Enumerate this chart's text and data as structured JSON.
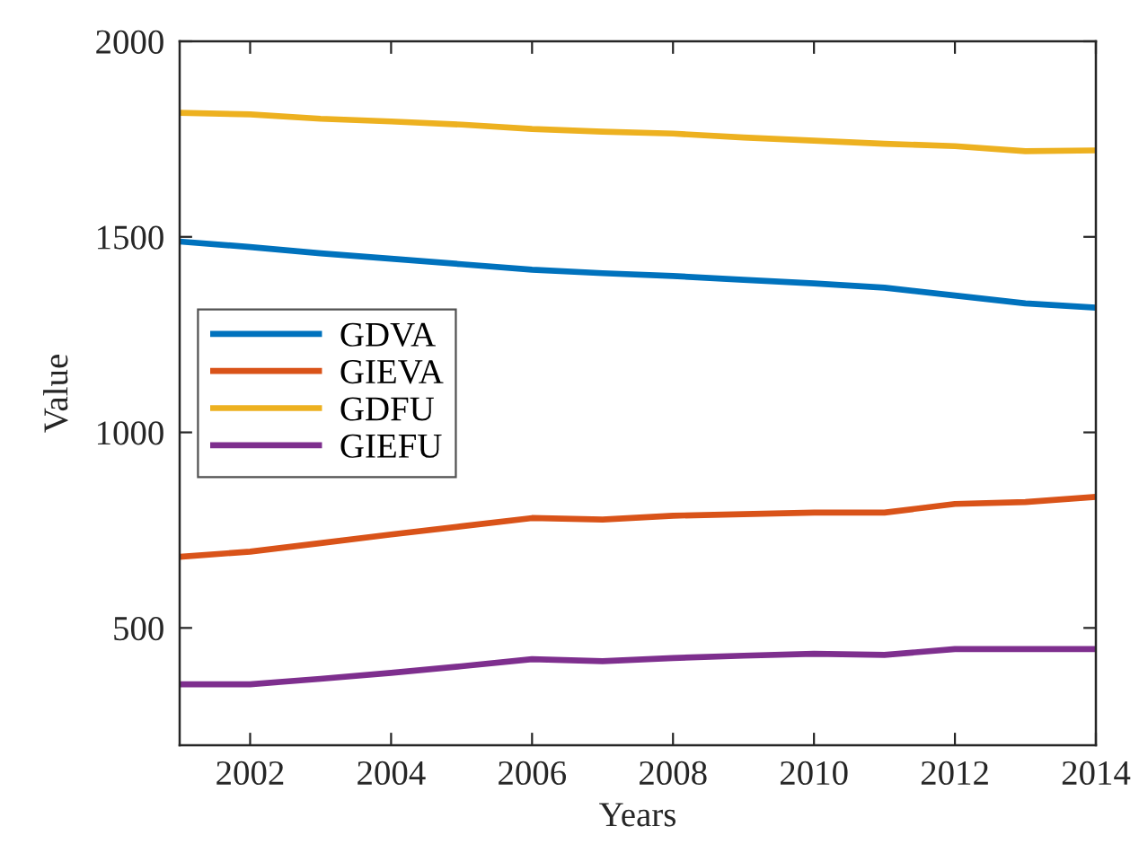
{
  "chart_data": {
    "type": "line",
    "xlabel": "Years",
    "ylabel": "Value",
    "x": [
      2001,
      2002,
      2003,
      2004,
      2005,
      2006,
      2007,
      2008,
      2009,
      2010,
      2011,
      2012,
      2013,
      2014
    ],
    "series": [
      {
        "name": "GDVA",
        "color": "#0072bd",
        "values": [
          1488,
          1474,
          1458,
          1444,
          1430,
          1416,
          1407,
          1400,
          1390,
          1381,
          1370,
          1350,
          1330,
          1319
        ]
      },
      {
        "name": "GIEVA",
        "color": "#d95319",
        "values": [
          682,
          695,
          717,
          739,
          760,
          781,
          777,
          787,
          791,
          795,
          795,
          817,
          822,
          835
        ]
      },
      {
        "name": "GDFU",
        "color": "#edb120",
        "values": [
          1817,
          1813,
          1802,
          1795,
          1787,
          1776,
          1769,
          1764,
          1754,
          1746,
          1738,
          1732,
          1719,
          1721
        ]
      },
      {
        "name": "GIEFU",
        "color": "#7e2f8e",
        "values": [
          356,
          356,
          370,
          385,
          402,
          420,
          415,
          423,
          429,
          434,
          431,
          446,
          446,
          446
        ]
      }
    ],
    "xlim": [
      2001,
      2014
    ],
    "xticks": [
      2002,
      2004,
      2006,
      2008,
      2010,
      2012,
      2014
    ],
    "ylim": [
      200,
      2000
    ],
    "yticks": [
      500,
      1000,
      1500,
      2000
    ],
    "grid": false,
    "legend": "left",
    "marker": "none",
    "line_style": "solid"
  }
}
